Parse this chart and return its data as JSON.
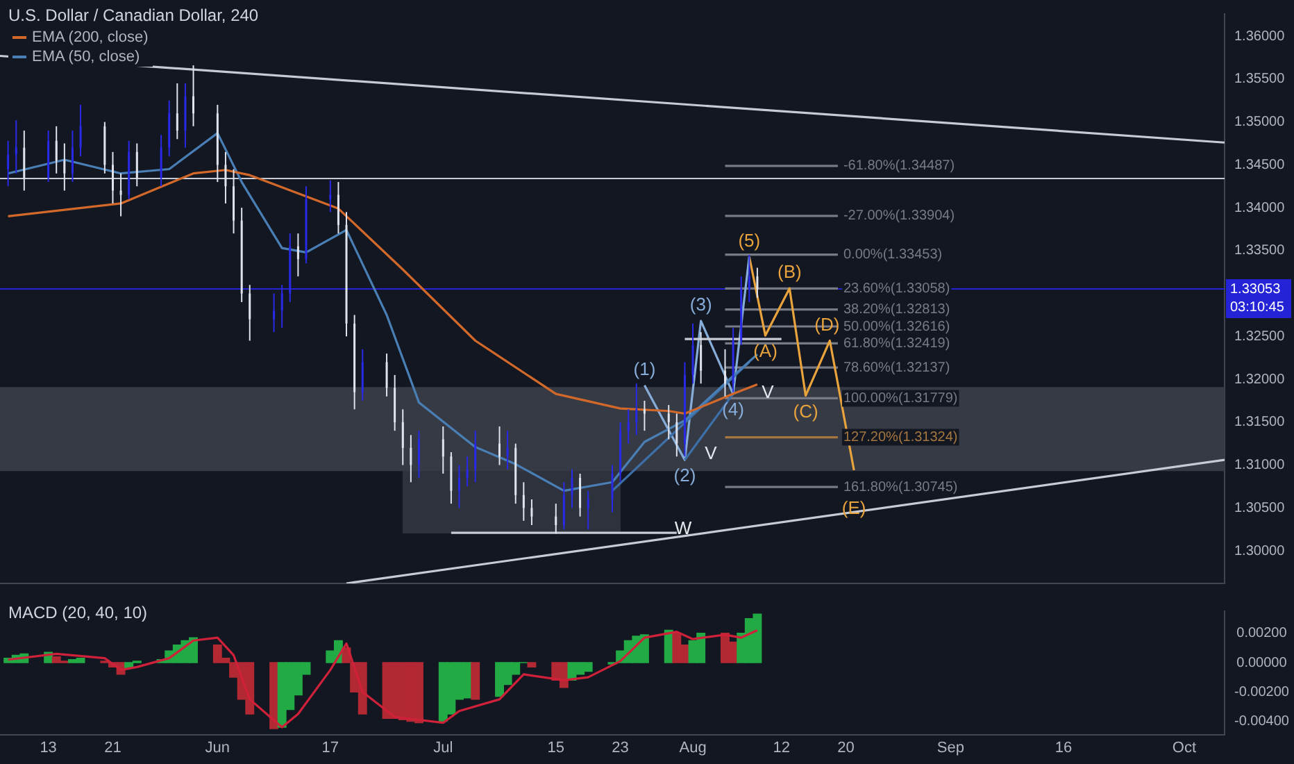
{
  "chart_data": [
    {
      "type": "candlestick",
      "title": "U.S. Dollar / Canadian Dollar, 240",
      "legend": "top left",
      "tick_labels": "y",
      "x": [
        "--05-08",
        "--05-09",
        "--05-10",
        "--05-13",
        "--05-14",
        "--05-15",
        "--05-16",
        "--05-17",
        "--05-20",
        "--05-21",
        "--05-22",
        "--05-23",
        "--05-24",
        "--05-27",
        "--05-28",
        "--05-29",
        "--05-30",
        "--05-31",
        "--06-03",
        "--06-04",
        "--06-05",
        "--06-06",
        "--06-07",
        "--06-10",
        "--06-11",
        "--06-12",
        "--06-13",
        "--06-14",
        "--06-17",
        "--06-18",
        "--06-19",
        "--06-20",
        "--06-21",
        "--06-24",
        "--06-25",
        "--06-26",
        "--06-27",
        "--06-28",
        "--07-01",
        "--07-02",
        "--07-03",
        "--07-04",
        "--07-05",
        "--07-08",
        "--07-09",
        "--07-10",
        "--07-11",
        "--07-12",
        "--07-15",
        "--07-16",
        "--07-17",
        "--07-18",
        "--07-19",
        "--07-22",
        "--07-23",
        "--07-24",
        "--07-25",
        "--07-26",
        "--07-29",
        "--07-30",
        "--07-31",
        "--08-01",
        "--08-02",
        "--08-05",
        "--08-06",
        "--08-07",
        "--08-08",
        "--08-09"
      ],
      "ohlc": [
        [
          1.3445,
          1.3478,
          1.3425,
          1.3462
        ],
        [
          1.3462,
          1.3502,
          1.344,
          1.347
        ],
        [
          1.347,
          1.349,
          1.342,
          1.3435
        ],
        [
          1.3435,
          1.349,
          1.343,
          1.3478
        ],
        [
          1.3478,
          1.3495,
          1.344,
          1.3455
        ],
        [
          1.3455,
          1.3475,
          1.342,
          1.344
        ],
        [
          1.344,
          1.349,
          1.343,
          1.347
        ],
        [
          1.347,
          1.352,
          1.346,
          1.3495
        ],
        [
          1.3495,
          1.35,
          1.344,
          1.345
        ],
        [
          1.345,
          1.3465,
          1.3405,
          1.342
        ],
        [
          1.342,
          1.344,
          1.339,
          1.3415
        ],
        [
          1.3415,
          1.3478,
          1.341,
          1.3465
        ],
        [
          1.3465,
          1.3475,
          1.3425,
          1.3435
        ],
        [
          1.3435,
          1.3485,
          1.3425,
          1.347
        ],
        [
          1.347,
          1.3525,
          1.346,
          1.351
        ],
        [
          1.351,
          1.3545,
          1.348,
          1.349
        ],
        [
          1.349,
          1.3545,
          1.347,
          1.353
        ],
        [
          1.353,
          1.3566,
          1.3495,
          1.351
        ],
        [
          1.351,
          1.352,
          1.343,
          1.345
        ],
        [
          1.345,
          1.3465,
          1.3405,
          1.3425
        ],
        [
          1.3425,
          1.3445,
          1.337,
          1.3385
        ],
        [
          1.3385,
          1.34,
          1.329,
          1.33
        ],
        [
          1.33,
          1.331,
          1.3245,
          1.327
        ],
        [
          1.327,
          1.33,
          1.3255,
          1.328
        ],
        [
          1.328,
          1.331,
          1.326,
          1.33
        ],
        [
          1.33,
          1.337,
          1.329,
          1.3355
        ],
        [
          1.3355,
          1.337,
          1.332,
          1.334
        ],
        [
          1.334,
          1.3425,
          1.3335,
          1.341
        ],
        [
          1.341,
          1.3432,
          1.3395,
          1.3415
        ],
        [
          1.3415,
          1.343,
          1.337,
          1.338
        ],
        [
          1.338,
          1.3395,
          1.325,
          1.3265
        ],
        [
          1.3265,
          1.3275,
          1.3165,
          1.3185
        ],
        [
          1.3185,
          1.3235,
          1.3175,
          1.322
        ],
        [
          1.322,
          1.323,
          1.318,
          1.319
        ],
        [
          1.319,
          1.3205,
          1.314,
          1.315
        ],
        [
          1.315,
          1.3165,
          1.31,
          1.312
        ],
        [
          1.312,
          1.3135,
          1.308,
          1.31
        ],
        [
          1.31,
          1.314,
          1.3085,
          1.313
        ],
        [
          1.313,
          1.3145,
          1.309,
          1.311
        ],
        [
          1.311,
          1.3115,
          1.3055,
          1.307
        ],
        [
          1.307,
          1.31,
          1.305,
          1.3085
        ],
        [
          1.3085,
          1.311,
          1.3075,
          1.3095
        ],
        [
          1.3095,
          1.314,
          1.308,
          1.3125
        ],
        [
          1.3125,
          1.3145,
          1.31,
          1.311
        ],
        [
          1.311,
          1.314,
          1.3095,
          1.312
        ],
        [
          1.312,
          1.3125,
          1.3055,
          1.3065
        ],
        [
          1.3065,
          1.308,
          1.3035,
          1.305
        ],
        [
          1.305,
          1.306,
          1.303,
          1.304
        ],
        [
          1.304,
          1.3055,
          1.302,
          1.303
        ],
        [
          1.303,
          1.308,
          1.3025,
          1.3065
        ],
        [
          1.3065,
          1.3095,
          1.305,
          1.3085
        ],
        [
          1.3085,
          1.309,
          1.304,
          1.305
        ],
        [
          1.305,
          1.307,
          1.3025,
          1.306
        ],
        [
          1.306,
          1.31,
          1.3045,
          1.309
        ],
        [
          1.309,
          1.315,
          1.308,
          1.314
        ],
        [
          1.314,
          1.3165,
          1.3125,
          1.315
        ],
        [
          1.315,
          1.3195,
          1.3135,
          1.3165
        ],
        [
          1.3165,
          1.3175,
          1.314,
          1.316
        ],
        [
          1.316,
          1.317,
          1.313,
          1.315
        ],
        [
          1.315,
          1.316,
          1.311,
          1.3125
        ],
        [
          1.3125,
          1.322,
          1.311,
          1.3205
        ],
        [
          1.3205,
          1.3265,
          1.3195,
          1.324
        ],
        [
          1.324,
          1.3255,
          1.3195,
          1.321
        ],
        [
          1.321,
          1.3235,
          1.318,
          1.3195
        ],
        [
          1.3195,
          1.326,
          1.3185,
          1.3245
        ],
        [
          1.3245,
          1.332,
          1.324,
          1.3305
        ],
        [
          1.3305,
          1.3345,
          1.329,
          1.332
        ],
        [
          1.332,
          1.333,
          1.3295,
          1.3305
        ]
      ],
      "colors": [
        "#2929e8",
        "#2929e8",
        "#e0e3eb",
        "#2929e8",
        "#e0e3eb",
        "#e0e3eb",
        "#2929e8",
        "#2929e8",
        "#e0e3eb",
        "#e0e3eb",
        "#e0e3eb",
        "#2929e8",
        "#e0e3eb",
        "#2929e8",
        "#2929e8",
        "#e0e3eb",
        "#2929e8",
        "#e0e3eb",
        "#e0e3eb",
        "#e0e3eb",
        "#e0e3eb",
        "#e0e3eb",
        "#e0e3eb",
        "#2929e8",
        "#2929e8",
        "#2929e8",
        "#e0e3eb",
        "#2929e8",
        "#2929e8",
        "#e0e3eb",
        "#e0e3eb",
        "#e0e3eb",
        "#2929e8",
        "#e0e3eb",
        "#e0e3eb",
        "#e0e3eb",
        "#e0e3eb",
        "#2929e8",
        "#e0e3eb",
        "#e0e3eb",
        "#2929e8",
        "#2929e8",
        "#2929e8",
        "#e0e3eb",
        "#2929e8",
        "#e0e3eb",
        "#e0e3eb",
        "#e0e3eb",
        "#e0e3eb",
        "#2929e8",
        "#2929e8",
        "#e0e3eb",
        "#2929e8",
        "#2929e8",
        "#2929e8",
        "#2929e8",
        "#2929e8",
        "#e0e3eb",
        "#e0e3eb",
        "#e0e3eb",
        "#2929e8",
        "#2929e8",
        "#e0e3eb",
        "#e0e3eb",
        "#2929e8",
        "#2929e8",
        "#2929e8",
        "#e0e3eb"
      ],
      "xlim": [
        "--05-07",
        "--10-06"
      ],
      "ylim": [
        1.2962,
        1.3626
      ],
      "yticks": [
        {
          "value": 1.3,
          "label": "1.30000"
        },
        {
          "value": 1.305,
          "label": "1.30500"
        },
        {
          "value": 1.31,
          "label": "1.31000"
        },
        {
          "value": 1.315,
          "label": "1.31500"
        },
        {
          "value": 1.32,
          "label": "1.32000"
        },
        {
          "value": 1.325,
          "label": "1.32500"
        },
        {
          "value": 1.335,
          "label": "1.33500"
        },
        {
          "value": 1.34,
          "label": "1.34000"
        },
        {
          "value": 1.345,
          "label": "1.34500"
        },
        {
          "value": 1.35,
          "label": "1.35000"
        },
        {
          "value": 1.355,
          "label": "1.35500"
        },
        {
          "value": 1.36,
          "label": "1.36000"
        }
      ],
      "bands": [
        {
          "axis": "y",
          "from": 1.3093,
          "to": 1.3191,
          "color": "#363a45"
        }
      ],
      "ref_lines": [
        {
          "axis": "y",
          "value": 1.3434,
          "color": "#c8cbd3"
        },
        {
          "axis": "y",
          "value": 1.33053,
          "label": "1.33053\n03:10:45",
          "color": "#2424d6"
        }
      ],
      "series": [
        {
          "type": "line",
          "name": "EMA (200, close)",
          "color": "#d2692a",
          "x": [
            "--05-08",
            "--05-22",
            "--05-31",
            "--06-04",
            "--06-07",
            "--06-18",
            "--06-26",
            "--07-05",
            "--07-15",
            "--07-23",
            "--07-29",
            "--07-31",
            "--08-06",
            "--08-09"
          ],
          "values": [
            1.339,
            1.3405,
            1.344,
            1.3444,
            1.3438,
            1.3399,
            1.3328,
            1.3245,
            1.3183,
            1.3166,
            1.3163,
            1.316,
            1.3183,
            1.3194
          ]
        },
        {
          "type": "line",
          "name": "EMA (50, close)",
          "color": "#4a7fb5",
          "x": [
            "--05-08",
            "--05-15",
            "--05-22",
            "--05-28",
            "--06-03",
            "--06-06",
            "--06-11",
            "--06-14",
            "--06-19",
            "--06-24",
            "--06-28",
            "--07-05",
            "--07-10",
            "--07-16",
            "--07-22",
            "--07-26",
            "--07-31",
            "--08-06",
            "--08-09"
          ],
          "values": [
            1.344,
            1.3456,
            1.344,
            1.3445,
            1.3487,
            1.343,
            1.3353,
            1.3348,
            1.3374,
            1.3275,
            1.3173,
            1.3121,
            1.3101,
            1.307,
            1.308,
            1.3127,
            1.3152,
            1.3204,
            1.3229
          ]
        },
        {
          "type": "line",
          "color": "#c8cbd3",
          "x": [
            "--05-07",
            "--10-06"
          ],
          "values": [
            1.3577,
            1.3476
          ]
        },
        {
          "type": "line",
          "color": "#c8cbd3",
          "x": [
            "--06-19",
            "--10-06"
          ],
          "values": [
            1.2962,
            1.3106
          ]
        },
        {
          "type": "line",
          "color": "#c8cbd3",
          "x": [
            "--07-02",
            "--07-30"
          ],
          "values": [
            1.3021,
            1.3021
          ]
        },
        {
          "type": "line",
          "color": "#c8cbd3",
          "x": [
            "--07-31",
            "--08-12"
          ],
          "values": [
            1.3247,
            1.3247
          ]
        },
        {
          "type": "line",
          "color": "#3d6fa8",
          "x": [
            "--07-22",
            "--08-08"
          ],
          "values": [
            1.307,
            1.322
          ]
        },
        {
          "type": "line",
          "color": "#3d6fa8",
          "x": [
            "--07-31",
            "--08-06"
          ],
          "values": [
            1.3106,
            1.3183
          ]
        },
        {
          "type": "line",
          "color": "#86acd8",
          "x": [
            "--07-26",
            "--07-31",
            "--08-02",
            "--08-06",
            "--08-08"
          ],
          "values": [
            1.3193,
            1.3106,
            1.3268,
            1.3183,
            1.3343
          ]
        },
        {
          "type": "line",
          "color": "#e8a33d",
          "x": [
            "--08-08",
            "--08-10",
            "--08-13",
            "--08-15",
            "--08-18",
            "--08-21"
          ],
          "values": [
            1.3343,
            1.3251,
            1.3306,
            1.3181,
            1.3245,
            1.3094
          ]
        },
        {
          "type": "line",
          "name": "-61.80%(1.34487)",
          "color": "#787b86",
          "x": [
            "--08-05",
            "--08-19"
          ],
          "values": [
            1.34487,
            1.34487
          ]
        },
        {
          "type": "line",
          "name": "-27.00%(1.33904)",
          "color": "#787b86",
          "x": [
            "--08-05",
            "--08-19"
          ],
          "values": [
            1.33904,
            1.33904
          ]
        },
        {
          "type": "line",
          "name": "0.00%(1.33453)",
          "color": "#787b86",
          "x": [
            "--08-05",
            "--08-19"
          ],
          "values": [
            1.33453,
            1.33453
          ]
        },
        {
          "type": "line",
          "name": "23.60%(1.33058)",
          "color": "#787b86",
          "x": [
            "--08-05",
            "--08-19"
          ],
          "values": [
            1.33058,
            1.33058
          ]
        },
        {
          "type": "line",
          "name": "38.20%(1.32813)",
          "color": "#787b86",
          "x": [
            "--08-05",
            "--08-19"
          ],
          "values": [
            1.32813,
            1.32813
          ]
        },
        {
          "type": "line",
          "name": "50.00%(1.32616)",
          "color": "#787b86",
          "x": [
            "--08-05",
            "--08-19"
          ],
          "values": [
            1.32616,
            1.32616
          ]
        },
        {
          "type": "line",
          "name": "61.80%(1.32419)",
          "color": "#787b86",
          "x": [
            "--08-05",
            "--08-19"
          ],
          "values": [
            1.32419,
            1.32419
          ]
        },
        {
          "type": "line",
          "name": "78.60%(1.32137)",
          "color": "#787b86",
          "x": [
            "--08-05",
            "--08-19"
          ],
          "values": [
            1.32137,
            1.32137
          ]
        },
        {
          "type": "line",
          "name": "100.00%(1.31779)",
          "color": "#787b86",
          "x": [
            "--08-05",
            "--08-19"
          ],
          "values": [
            1.31779,
            1.31779
          ]
        },
        {
          "type": "line",
          "name": "127.20%(1.31324)",
          "color": "#a5773f",
          "x": [
            "--08-05",
            "--08-19"
          ],
          "values": [
            1.31324,
            1.31324
          ]
        },
        {
          "type": "line",
          "name": "161.80%(1.30745)",
          "color": "#787b86",
          "x": [
            "--08-05",
            "--08-19"
          ],
          "values": [
            1.30745,
            1.30745
          ]
        }
      ],
      "annotations": [
        {
          "text": "(1)",
          "x": "--07-26",
          "y": 1.3193
        },
        {
          "text": "(2)",
          "x": "--07-31",
          "y": 1.3106
        },
        {
          "text": "(3)",
          "x": "--08-02",
          "y": 1.3268
        },
        {
          "text": "(4)",
          "x": "--08-06",
          "y": 1.3183
        },
        {
          "text": "(5)",
          "x": "--08-08",
          "y": 1.3343
        },
        {
          "text": "(A)",
          "x": "--08-10",
          "y": 1.3251
        },
        {
          "text": "(B)",
          "x": "--08-13",
          "y": 1.3306
        },
        {
          "text": "(C)",
          "x": "--08-15",
          "y": 1.3181
        },
        {
          "text": "(D)",
          "x": "--08-18",
          "y": 1.3245
        },
        {
          "text": "(E)",
          "x": "--08-21",
          "y": 1.3094
        },
        "W",
        "V",
        "V"
      ]
    },
    {
      "type": "bar",
      "title": "MACD (20, 40, 10)",
      "x": [
        "--05-08",
        "--05-09",
        "--05-10",
        "--05-13",
        "--05-14",
        "--05-15",
        "--05-16",
        "--05-17",
        "--05-20",
        "--05-21",
        "--05-22",
        "--05-23",
        "--05-24",
        "--05-27",
        "--05-28",
        "--05-29",
        "--05-30",
        "--05-31",
        "--06-03",
        "--06-04",
        "--06-05",
        "--06-06",
        "--06-07",
        "--06-10",
        "--06-11",
        "--06-12",
        "--06-13",
        "--06-14",
        "--06-17",
        "--06-18",
        "--06-19",
        "--06-20",
        "--06-21",
        "--06-24",
        "--06-25",
        "--06-26",
        "--06-27",
        "--06-28",
        "--07-01",
        "--07-02",
        "--07-03",
        "--07-04",
        "--07-05",
        "--07-08",
        "--07-09",
        "--07-10",
        "--07-11",
        "--07-12",
        "--07-15",
        "--07-16",
        "--07-17",
        "--07-18",
        "--07-19",
        "--07-22",
        "--07-23",
        "--07-24",
        "--07-25",
        "--07-26",
        "--07-29",
        "--07-30",
        "--07-31",
        "--08-01",
        "--08-02",
        "--08-05",
        "--08-06",
        "--08-07",
        "--08-08",
        "--08-09"
      ],
      "xlim": [
        "--05-07",
        "--10-06"
      ],
      "xticks": [
        {
          "value": "--05-13",
          "label": "13"
        },
        {
          "value": "--05-21",
          "label": "21"
        },
        {
          "value": "--06-03",
          "label": "Jun"
        },
        {
          "value": "--06-17",
          "label": "17"
        },
        {
          "value": "--07-01",
          "label": "Jul"
        },
        {
          "value": "--07-15",
          "label": "15"
        },
        {
          "value": "--07-23",
          "label": "23"
        },
        {
          "value": "--08-01",
          "label": "Aug"
        },
        {
          "value": "--08-12",
          "label": "12"
        },
        {
          "value": "--08-20",
          "label": "20"
        },
        {
          "value": "--09-02",
          "label": "Sep"
        },
        {
          "value": "--09-16",
          "label": "16"
        },
        {
          "value": "--10-01",
          "label": "Oct"
        }
      ],
      "ylim": [
        -0.0049,
        0.0035
      ],
      "yticks": [
        {
          "value": -0.004,
          "label": "-0.00400"
        },
        {
          "value": -0.002,
          "label": "-0.00200"
        },
        {
          "value": 0,
          "label": "0.00000"
        },
        {
          "value": 0.002,
          "label": "0.00200"
        }
      ],
      "series": [
        {
          "type": "bar",
          "values": [
            0.0003,
            0.0005,
            0.0006,
            0.0007,
            0.0004,
            0.0001,
            0.0002,
            0.0003,
            0.0001,
            -0.0003,
            -0.0008,
            -0.0004,
            0.0001,
            0.0002,
            0.0008,
            0.0012,
            0.0015,
            0.0017,
            0.0012,
            0.0003,
            -0.001,
            -0.0025,
            -0.0035,
            -0.0045,
            -0.0044,
            -0.0032,
            -0.0022,
            -0.0008,
            0.0008,
            0.0015,
            0.001,
            -0.002,
            -0.0035,
            -0.0038,
            -0.0038,
            -0.0039,
            -0.004,
            -0.0041,
            -0.004,
            -0.0035,
            -0.0025,
            -0.0024,
            -0.0025,
            -0.0023,
            -0.0015,
            -0.0008,
            0,
            -0.0003,
            -0.0012,
            -0.0017,
            -0.0012,
            -0.0008,
            -0.0006,
            -0.0001,
            0.0008,
            0.0015,
            0.0018,
            0.0019,
            0.0022,
            0.002,
            0.0012,
            0.0015,
            0.002,
            0.002,
            0.0014,
            0.002,
            0.003,
            0.0033
          ],
          "colors": [
            "#22ab45",
            "#22ab45",
            "#22ab45",
            "#22ab45",
            "#b22833",
            "#b22833",
            "#22ab45",
            "#22ab45",
            "#b22833",
            "#b22833",
            "#b22833",
            "#22ab45",
            "#22ab45",
            "#22ab45",
            "#22ab45",
            "#22ab45",
            "#22ab45",
            "#22ab45",
            "#b22833",
            "#b22833",
            "#b22833",
            "#b22833",
            "#b22833",
            "#b22833",
            "#22ab45",
            "#22ab45",
            "#22ab45",
            "#22ab45",
            "#22ab45",
            "#22ab45",
            "#b22833",
            "#b22833",
            "#b22833",
            "#b22833",
            "#b22833",
            "#b22833",
            "#b22833",
            "#b22833",
            "#22ab45",
            "#22ab45",
            "#22ab45",
            "#22ab45",
            "#b22833",
            "#22ab45",
            "#22ab45",
            "#22ab45",
            "#22ab45",
            "#b22833",
            "#b22833",
            "#b22833",
            "#22ab45",
            "#22ab45",
            "#22ab45",
            "#22ab45",
            "#22ab45",
            "#22ab45",
            "#22ab45",
            "#22ab45",
            "#22ab45",
            "#b22833",
            "#b22833",
            "#22ab45",
            "#22ab45",
            "#b22833",
            "#b22833",
            "#22ab45",
            "#22ab45",
            "#22ab45"
          ]
        },
        {
          "type": "line",
          "color": "#d0213a",
          "x": [
            "--05-08",
            "--05-14",
            "--05-20",
            "--05-22",
            "--05-24",
            "--05-28",
            "--05-31",
            "--06-03",
            "--06-05",
            "--06-07",
            "--06-11",
            "--06-13",
            "--06-17",
            "--06-19",
            "--06-21",
            "--06-25",
            "--07-01",
            "--07-03",
            "--07-08",
            "--07-11",
            "--07-16",
            "--07-19",
            "--07-23",
            "--07-26",
            "--07-30",
            "--08-01",
            "--08-05",
            "--08-07",
            "--08-09"
          ],
          "values": [
            0.0002,
            0.0006,
            0.0003,
            -0.0005,
            -0.0003,
            0.0003,
            0.0015,
            0.0017,
            0.0005,
            -0.0025,
            -0.0044,
            -0.0035,
            -0.0005,
            0.0013,
            -0.002,
            -0.0037,
            -0.0041,
            -0.0033,
            -0.0025,
            -0.0008,
            -0.0012,
            -0.001,
            0.0001,
            0.0017,
            0.0021,
            0.0016,
            0.0019,
            0.0017,
            0.0022
          ]
        }
      ]
    }
  ]
}
